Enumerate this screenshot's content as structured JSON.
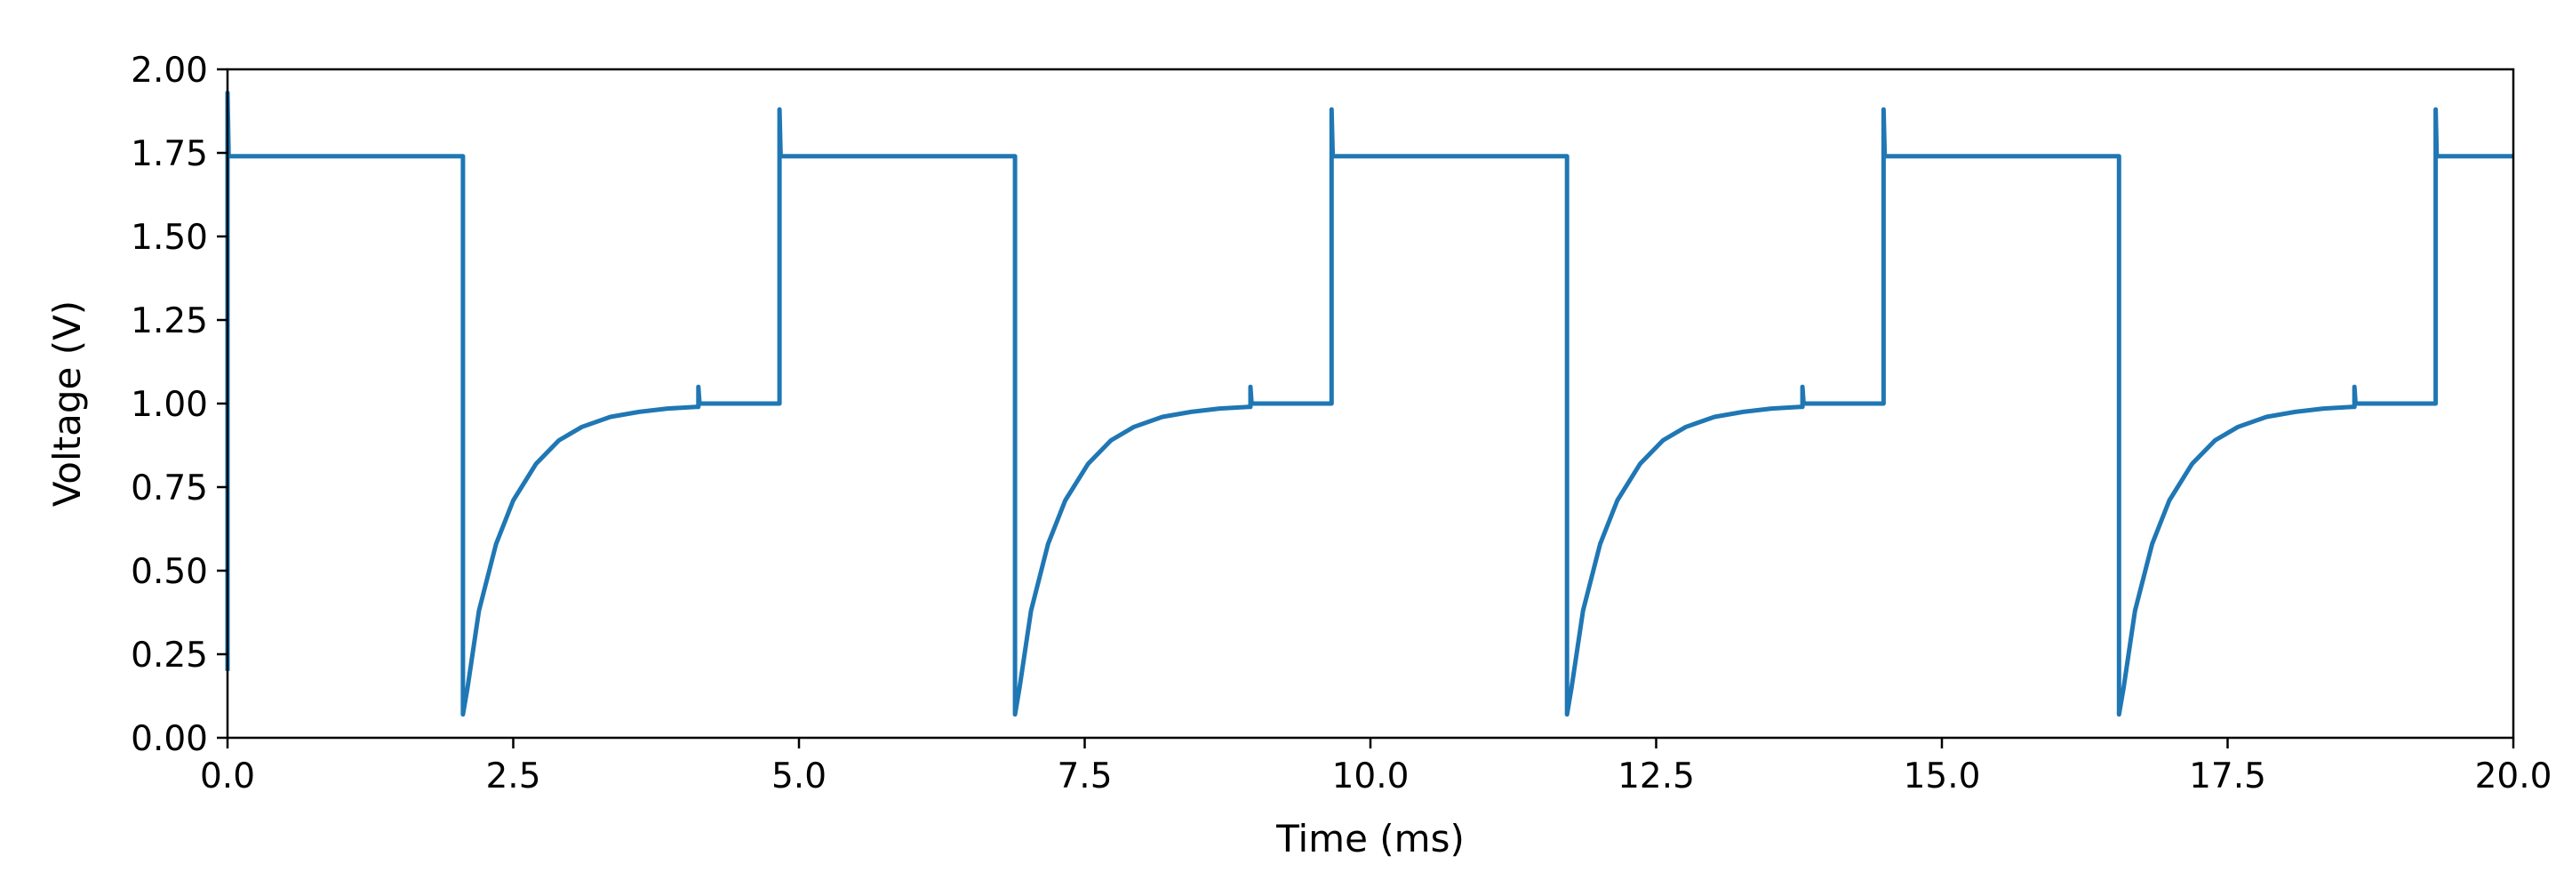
{
  "chart_data": {
    "type": "line",
    "xlabel": "Time (ms)",
    "ylabel": "Voltage (V)",
    "xlim": [
      0.0,
      20.0
    ],
    "ylim": [
      0.0,
      2.0
    ],
    "xticks": [
      "0.0",
      "2.5",
      "5.0",
      "7.5",
      "10.0",
      "12.5",
      "15.0",
      "17.5",
      "20.0"
    ],
    "yticks": [
      "0.00",
      "0.25",
      "0.50",
      "0.75",
      "1.00",
      "1.25",
      "1.50",
      "1.75",
      "2.00"
    ],
    "grid": false,
    "series": [
      {
        "color": "#1f77b4",
        "x": [
          0.0,
          0.0,
          0.01,
          0.02,
          0.03,
          2.05,
          2.06,
          2.06,
          2.1,
          2.2,
          2.35,
          2.5,
          2.7,
          2.9,
          3.1,
          3.35,
          3.6,
          3.85,
          4.1,
          4.12,
          4.12,
          4.13,
          4.13,
          4.83,
          4.83,
          4.84,
          4.84,
          6.88,
          6.89,
          6.89,
          6.93,
          7.03,
          7.18,
          7.33,
          7.53,
          7.73,
          7.93,
          8.18,
          8.43,
          8.68,
          8.93,
          8.95,
          8.95,
          8.96,
          8.96,
          9.66,
          9.66,
          9.67,
          9.67,
          11.71,
          11.72,
          11.72,
          11.76,
          11.86,
          12.01,
          12.16,
          12.36,
          12.56,
          12.76,
          13.01,
          13.26,
          13.51,
          13.76,
          13.78,
          13.78,
          13.79,
          13.79,
          14.49,
          14.49,
          14.5,
          14.5,
          16.54,
          16.55,
          16.55,
          16.59,
          16.69,
          16.84,
          16.99,
          17.19,
          17.39,
          17.59,
          17.84,
          18.09,
          18.34,
          18.59,
          18.61,
          18.61,
          18.62,
          18.62,
          19.32,
          19.32,
          19.33,
          19.33,
          20.0
        ],
        "y": [
          0.2,
          1.93,
          1.74,
          1.74,
          1.74,
          1.74,
          1.74,
          0.07,
          0.15,
          0.38,
          0.58,
          0.71,
          0.82,
          0.89,
          0.93,
          0.96,
          0.975,
          0.985,
          0.99,
          0.99,
          1.05,
          1.0,
          1.0,
          1.0,
          1.88,
          1.74,
          1.74,
          1.74,
          1.74,
          0.07,
          0.15,
          0.38,
          0.58,
          0.71,
          0.82,
          0.89,
          0.93,
          0.96,
          0.975,
          0.985,
          0.99,
          0.99,
          1.05,
          1.0,
          1.0,
          1.0,
          1.88,
          1.74,
          1.74,
          1.74,
          1.74,
          0.07,
          0.15,
          0.38,
          0.58,
          0.71,
          0.82,
          0.89,
          0.93,
          0.96,
          0.975,
          0.985,
          0.99,
          0.99,
          1.05,
          1.0,
          1.0,
          1.0,
          1.88,
          1.74,
          1.74,
          1.74,
          1.74,
          0.07,
          0.15,
          0.38,
          0.58,
          0.71,
          0.82,
          0.89,
          0.93,
          0.96,
          0.975,
          0.985,
          0.99,
          0.99,
          1.05,
          1.0,
          1.0,
          1.0,
          1.88,
          1.74,
          1.74,
          1.74
        ]
      }
    ]
  }
}
